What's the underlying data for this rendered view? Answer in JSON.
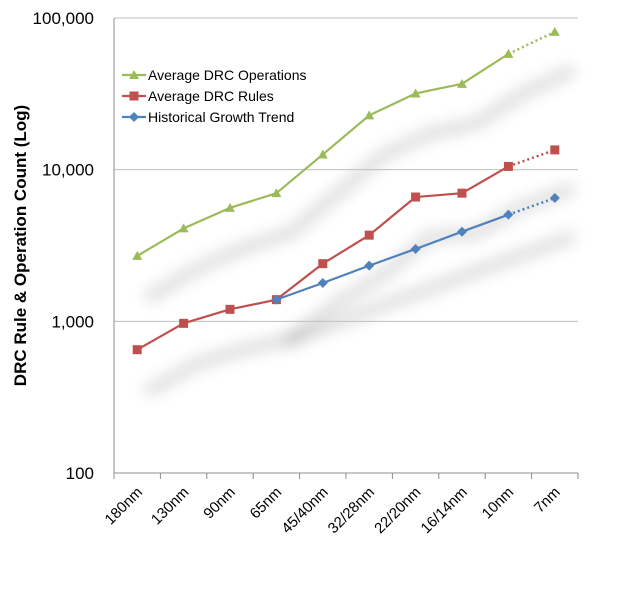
{
  "chart_data": {
    "type": "line",
    "title": "",
    "xlabel": "",
    "ylabel": "DRC Rule  & Operation Count (Log)",
    "yscale": "log",
    "ylim": [
      100,
      100000
    ],
    "yticks": [
      100,
      1000,
      10000,
      100000
    ],
    "ytick_labels": [
      "100",
      "1,000",
      "10,000",
      "100,000"
    ],
    "categories": [
      "180nm",
      "130nm",
      "90nm",
      "65nm",
      "45/40nm",
      "32/28nm",
      "22/20nm",
      "16/14nm",
      "10nm",
      "7nm"
    ],
    "grid": "horizontal",
    "legend_position": "top-left",
    "series": [
      {
        "name": "Average DRC Operations",
        "color": "#9bbb59",
        "marker": "triangle",
        "values": [
          2700,
          4100,
          5600,
          7000,
          12600,
          22800,
          31800,
          36800,
          58000,
          81000
        ],
        "dotted_from_index": 8
      },
      {
        "name": "Average DRC Rules",
        "color": "#c0504d",
        "marker": "square",
        "values": [
          650,
          970,
          1200,
          1390,
          2400,
          3700,
          6600,
          7000,
          10500,
          13500
        ],
        "dotted_from_index": 8
      },
      {
        "name": "Historical Growth Trend",
        "color": "#4f81bd",
        "marker": "diamond",
        "values": [
          null,
          null,
          null,
          1390,
          1790,
          2330,
          3000,
          3900,
          5050,
          6500
        ],
        "dotted_from_index": 8
      }
    ]
  }
}
